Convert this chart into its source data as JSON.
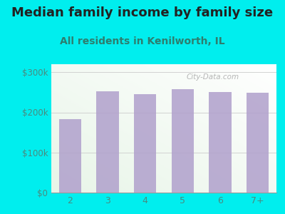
{
  "title": "Median family income by family size",
  "subtitle": "All residents in Kenilworth, IL",
  "categories": [
    "2",
    "3",
    "4",
    "5",
    "6",
    "7+"
  ],
  "values": [
    183000,
    253000,
    245000,
    258000,
    250000,
    248000
  ],
  "bar_color": "#b0a0cc",
  "background_color": "#00eeee",
  "plot_bg_color": "#e8f5e8",
  "title_color": "#222222",
  "subtitle_color": "#2e7d6e",
  "tick_color": "#4a8a80",
  "ylim": [
    0,
    320000
  ],
  "yticks": [
    0,
    100000,
    200000,
    300000
  ],
  "ytick_labels": [
    "$0",
    "$100k",
    "$200k",
    "$300k"
  ],
  "title_fontsize": 13,
  "subtitle_fontsize": 10,
  "watermark": "City-Data.com"
}
